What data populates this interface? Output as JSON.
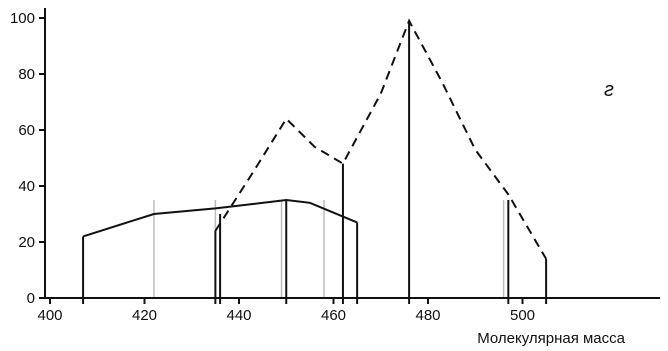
{
  "chart_data": {
    "type": "line",
    "xlabel": "Молекулярная масса",
    "ylabel": "",
    "xlim": [
      397,
      510
    ],
    "ylim": [
      0,
      100
    ],
    "x_ticks": [
      400,
      420,
      440,
      460,
      480,
      500
    ],
    "y_ticks": [
      0,
      20,
      40,
      60,
      80,
      100
    ],
    "annotation": "г",
    "series": [
      {
        "style": "solid",
        "points": [
          [
            407,
            22
          ],
          [
            422,
            30
          ],
          [
            435,
            32
          ],
          [
            440,
            33
          ],
          [
            450,
            35
          ],
          [
            455,
            34
          ],
          [
            465,
            27
          ]
        ]
      },
      {
        "style": "dashed",
        "points": [
          [
            435,
            24
          ],
          [
            443,
            45
          ],
          [
            450,
            64
          ],
          [
            456,
            54
          ],
          [
            462,
            48
          ],
          [
            470,
            73
          ],
          [
            476,
            99
          ],
          [
            483,
            77
          ],
          [
            490,
            53
          ],
          [
            497,
            37
          ],
          [
            505,
            14
          ]
        ]
      }
    ],
    "bars": [
      {
        "x": 407,
        "y": 22
      },
      {
        "x": 435,
        "y": 24
      },
      {
        "x": 436,
        "y": 30
      },
      {
        "x": 450,
        "y": 35
      },
      {
        "x": 462,
        "y": 48
      },
      {
        "x": 465,
        "y": 27
      },
      {
        "x": 476,
        "y": 99
      },
      {
        "x": 497,
        "y": 35
      },
      {
        "x": 505,
        "y": 14
      }
    ],
    "reference_lines_x": [
      422,
      435,
      449,
      458,
      496
    ]
  }
}
